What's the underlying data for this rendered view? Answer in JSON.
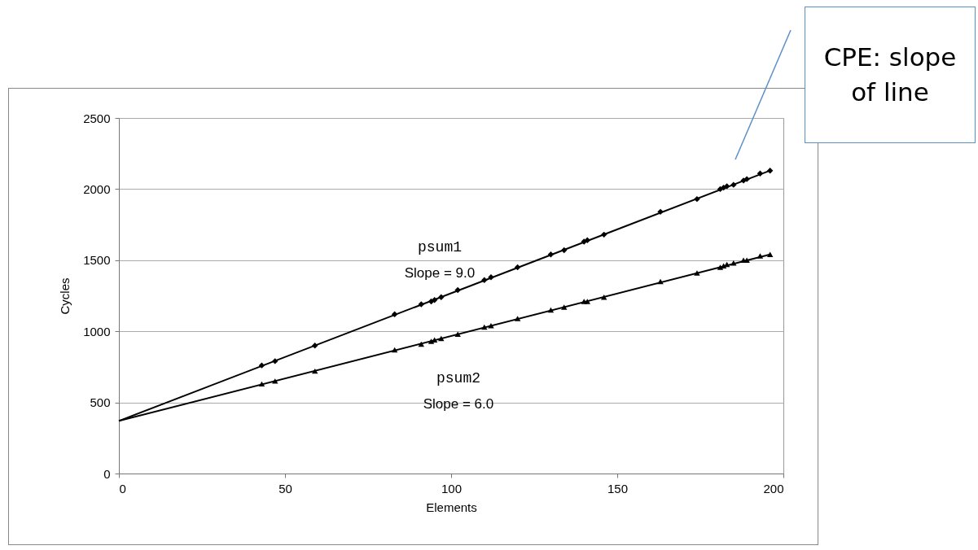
{
  "chart_data": {
    "type": "scatter",
    "xlabel": "Elements",
    "ylabel": "Cycles",
    "xlim": [
      0,
      200
    ],
    "xticks": [
      0,
      50,
      100,
      150,
      200
    ],
    "ylim": [
      0,
      2500
    ],
    "yticks": [
      0,
      500,
      1000,
      1500,
      2000,
      2500
    ],
    "grid": "y",
    "series": [
      {
        "name": "psum1",
        "marker": "diamond",
        "color": "#000000",
        "x": [
          43,
          47,
          59,
          83,
          91,
          94,
          95,
          97,
          102,
          110,
          112,
          120,
          130,
          134,
          140,
          141,
          146,
          163,
          174,
          181,
          182,
          183,
          185,
          188,
          189,
          193,
          196
        ],
        "values": [
          760,
          790,
          900,
          1120,
          1190,
          1210,
          1220,
          1240,
          1290,
          1360,
          1380,
          1450,
          1540,
          1570,
          1630,
          1640,
          1680,
          1840,
          1930,
          2000,
          2010,
          2020,
          2030,
          2060,
          2070,
          2110,
          2130
        ]
      },
      {
        "name": "psum2",
        "marker": "triangle",
        "color": "#000000",
        "x": [
          43,
          47,
          59,
          83,
          91,
          94,
          95,
          97,
          102,
          110,
          112,
          120,
          130,
          134,
          140,
          141,
          146,
          163,
          174,
          181,
          182,
          183,
          185,
          188,
          189,
          193,
          196
        ],
        "values": [
          630,
          650,
          720,
          870,
          910,
          930,
          940,
          950,
          980,
          1030,
          1040,
          1090,
          1150,
          1170,
          1210,
          1210,
          1240,
          1350,
          1410,
          1450,
          1460,
          1470,
          1480,
          1500,
          1500,
          1530,
          1540
        ]
      },
      {
        "type": "line",
        "color": "#000000",
        "x": [
          0,
          196
        ],
        "values": [
          370,
          2130
        ]
      },
      {
        "type": "line",
        "color": "#000000",
        "x": [
          0,
          196
        ],
        "values": [
          370,
          1540
        ]
      }
    ],
    "annotations": [
      "Slope = 9.0",
      "Slope = 6.0",
      "CPE: slope of line"
    ]
  }
}
